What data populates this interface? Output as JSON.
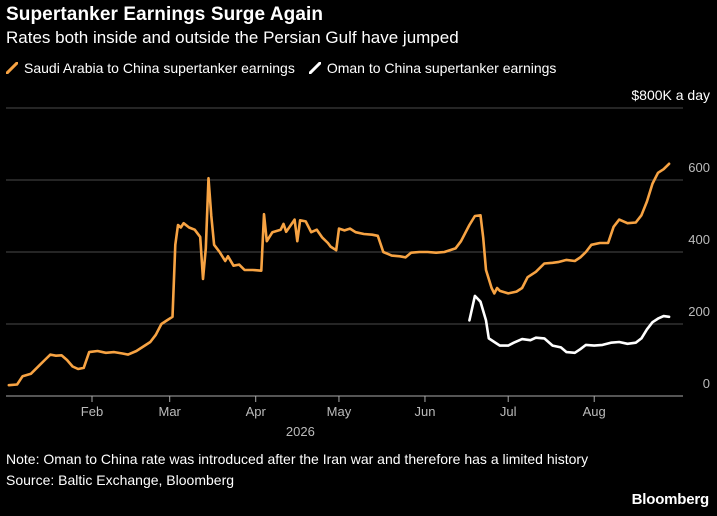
{
  "header": {
    "title": "Supertanker Earnings Surge Again",
    "subtitle": "Rates both inside and outside the Persian Gulf have jumped"
  },
  "colors": {
    "background": "#000000",
    "saudi_series": "#f7a343",
    "oman_series": "#ffffff",
    "gridline": "#4a4a4a",
    "axis": "#aaaaaa",
    "text_muted": "#bbbbbb"
  },
  "legend": {
    "items": [
      {
        "label": "Saudi Arabia to China supertanker earnings",
        "color": "#f7a343"
      },
      {
        "label": "Oman to China supertanker earnings",
        "color": "#ffffff"
      }
    ]
  },
  "chart_data": {
    "type": "line",
    "unit_label": "$800K a day",
    "ylim": [
      0,
      800
    ],
    "yticks": [
      0,
      200,
      400,
      600
    ],
    "xlim": [
      "2026-01-01",
      "2026-09-02"
    ],
    "xticks": [
      {
        "label": "Feb",
        "date": "2026-02-01"
      },
      {
        "label": "Mar",
        "date": "2026-03-01"
      },
      {
        "label": "Apr",
        "date": "2026-04-01"
      },
      {
        "label": "May",
        "date": "2026-05-01"
      },
      {
        "label": "Jun",
        "date": "2026-06-01"
      },
      {
        "label": "Jul",
        "date": "2026-07-01"
      },
      {
        "label": "Aug",
        "date": "2026-08-01"
      }
    ],
    "year_label": "2026",
    "grid": true,
    "legend_position": "top-left",
    "series": [
      {
        "name": "Saudi Arabia to China supertanker earnings",
        "color": "#f7a343",
        "points": [
          [
            "2026-01-02",
            30
          ],
          [
            "2026-01-05",
            32
          ],
          [
            "2026-01-07",
            55
          ],
          [
            "2026-01-10",
            62
          ],
          [
            "2026-01-13",
            85
          ],
          [
            "2026-01-15",
            100
          ],
          [
            "2026-01-17",
            115
          ],
          [
            "2026-01-19",
            112
          ],
          [
            "2026-01-21",
            113
          ],
          [
            "2026-01-23",
            100
          ],
          [
            "2026-01-25",
            82
          ],
          [
            "2026-01-27",
            75
          ],
          [
            "2026-01-29",
            78
          ],
          [
            "2026-01-31",
            122
          ],
          [
            "2026-02-03",
            125
          ],
          [
            "2026-02-06",
            120
          ],
          [
            "2026-02-09",
            122
          ],
          [
            "2026-02-12",
            118
          ],
          [
            "2026-02-14",
            115
          ],
          [
            "2026-02-17",
            125
          ],
          [
            "2026-02-20",
            140
          ],
          [
            "2026-02-22",
            150
          ],
          [
            "2026-02-24",
            170
          ],
          [
            "2026-02-26",
            200
          ],
          [
            "2026-02-28",
            210
          ],
          [
            "2026-03-02",
            220
          ],
          [
            "2026-03-03",
            420
          ],
          [
            "2026-03-04",
            475
          ],
          [
            "2026-03-05",
            468
          ],
          [
            "2026-03-06",
            480
          ],
          [
            "2026-03-08",
            468
          ],
          [
            "2026-03-10",
            462
          ],
          [
            "2026-03-12",
            442
          ],
          [
            "2026-03-13",
            325
          ],
          [
            "2026-03-14",
            410
          ],
          [
            "2026-03-15",
            605
          ],
          [
            "2026-03-16",
            500
          ],
          [
            "2026-03-17",
            420
          ],
          [
            "2026-03-19",
            400
          ],
          [
            "2026-03-21",
            375
          ],
          [
            "2026-03-22",
            388
          ],
          [
            "2026-03-24",
            362
          ],
          [
            "2026-03-26",
            365
          ],
          [
            "2026-03-28",
            350
          ],
          [
            "2026-03-31",
            350
          ],
          [
            "2026-04-03",
            348
          ],
          [
            "2026-04-04",
            505
          ],
          [
            "2026-04-05",
            430
          ],
          [
            "2026-04-07",
            455
          ],
          [
            "2026-04-10",
            462
          ],
          [
            "2026-04-11",
            478
          ],
          [
            "2026-04-12",
            456
          ],
          [
            "2026-04-15",
            490
          ],
          [
            "2026-04-16",
            430
          ],
          [
            "2026-04-17",
            488
          ],
          [
            "2026-04-19",
            485
          ],
          [
            "2026-04-21",
            455
          ],
          [
            "2026-04-23",
            462
          ],
          [
            "2026-04-25",
            440
          ],
          [
            "2026-04-27",
            425
          ],
          [
            "2026-04-28",
            415
          ],
          [
            "2026-04-30",
            405
          ],
          [
            "2026-05-01",
            465
          ],
          [
            "2026-05-03",
            460
          ],
          [
            "2026-05-05",
            465
          ],
          [
            "2026-05-07",
            455
          ],
          [
            "2026-05-10",
            450
          ],
          [
            "2026-05-13",
            448
          ],
          [
            "2026-05-15",
            445
          ],
          [
            "2026-05-17",
            400
          ],
          [
            "2026-05-20",
            390
          ],
          [
            "2026-05-23",
            388
          ],
          [
            "2026-05-25",
            385
          ],
          [
            "2026-05-27",
            398
          ],
          [
            "2026-05-30",
            400
          ],
          [
            "2026-06-02",
            400
          ],
          [
            "2026-06-05",
            398
          ],
          [
            "2026-06-08",
            400
          ],
          [
            "2026-06-12",
            410
          ],
          [
            "2026-06-14",
            430
          ],
          [
            "2026-06-17",
            475
          ],
          [
            "2026-06-19",
            500
          ],
          [
            "2026-06-21",
            502
          ],
          [
            "2026-06-22",
            440
          ],
          [
            "2026-06-23",
            350
          ],
          [
            "2026-06-25",
            300
          ],
          [
            "2026-06-26",
            285
          ],
          [
            "2026-06-27",
            300
          ],
          [
            "2026-06-28",
            292
          ],
          [
            "2026-07-01",
            285
          ],
          [
            "2026-07-04",
            290
          ],
          [
            "2026-07-06",
            300
          ],
          [
            "2026-07-08",
            330
          ],
          [
            "2026-07-11",
            345
          ],
          [
            "2026-07-14",
            368
          ],
          [
            "2026-07-17",
            370
          ],
          [
            "2026-07-19",
            372
          ],
          [
            "2026-07-22",
            378
          ],
          [
            "2026-07-25",
            375
          ],
          [
            "2026-07-27",
            385
          ],
          [
            "2026-07-29",
            400
          ],
          [
            "2026-07-31",
            420
          ],
          [
            "2026-08-03",
            425
          ],
          [
            "2026-08-06",
            425
          ],
          [
            "2026-08-08",
            470
          ],
          [
            "2026-08-10",
            490
          ],
          [
            "2026-08-13",
            480
          ],
          [
            "2026-08-16",
            482
          ],
          [
            "2026-08-18",
            502
          ],
          [
            "2026-08-20",
            540
          ],
          [
            "2026-08-22",
            590
          ],
          [
            "2026-08-24",
            620
          ],
          [
            "2026-08-26",
            630
          ],
          [
            "2026-08-28",
            645
          ]
        ]
      },
      {
        "name": "Oman to China supertanker earnings",
        "color": "#ffffff",
        "points": [
          [
            "2026-06-17",
            210
          ],
          [
            "2026-06-19",
            278
          ],
          [
            "2026-06-21",
            262
          ],
          [
            "2026-06-23",
            210
          ],
          [
            "2026-06-24",
            160
          ],
          [
            "2026-06-26",
            150
          ],
          [
            "2026-06-28",
            140
          ],
          [
            "2026-07-01",
            140
          ],
          [
            "2026-07-03",
            148
          ],
          [
            "2026-07-06",
            158
          ],
          [
            "2026-07-09",
            155
          ],
          [
            "2026-07-11",
            162
          ],
          [
            "2026-07-14",
            160
          ],
          [
            "2026-07-17",
            140
          ],
          [
            "2026-07-20",
            135
          ],
          [
            "2026-07-22",
            122
          ],
          [
            "2026-07-25",
            120
          ],
          [
            "2026-07-27",
            130
          ],
          [
            "2026-07-29",
            142
          ],
          [
            "2026-08-01",
            140
          ],
          [
            "2026-08-04",
            142
          ],
          [
            "2026-08-07",
            148
          ],
          [
            "2026-08-10",
            150
          ],
          [
            "2026-08-13",
            145
          ],
          [
            "2026-08-16",
            148
          ],
          [
            "2026-08-18",
            160
          ],
          [
            "2026-08-20",
            185
          ],
          [
            "2026-08-22",
            205
          ],
          [
            "2026-08-24",
            215
          ],
          [
            "2026-08-26",
            222
          ],
          [
            "2026-08-28",
            220
          ]
        ]
      }
    ]
  },
  "footer": {
    "note": "Note: Oman to China rate was introduced after the Iran war and therefore has a limited history",
    "source": "Source: Baltic Exchange, Bloomberg",
    "brand": "Bloomberg"
  }
}
